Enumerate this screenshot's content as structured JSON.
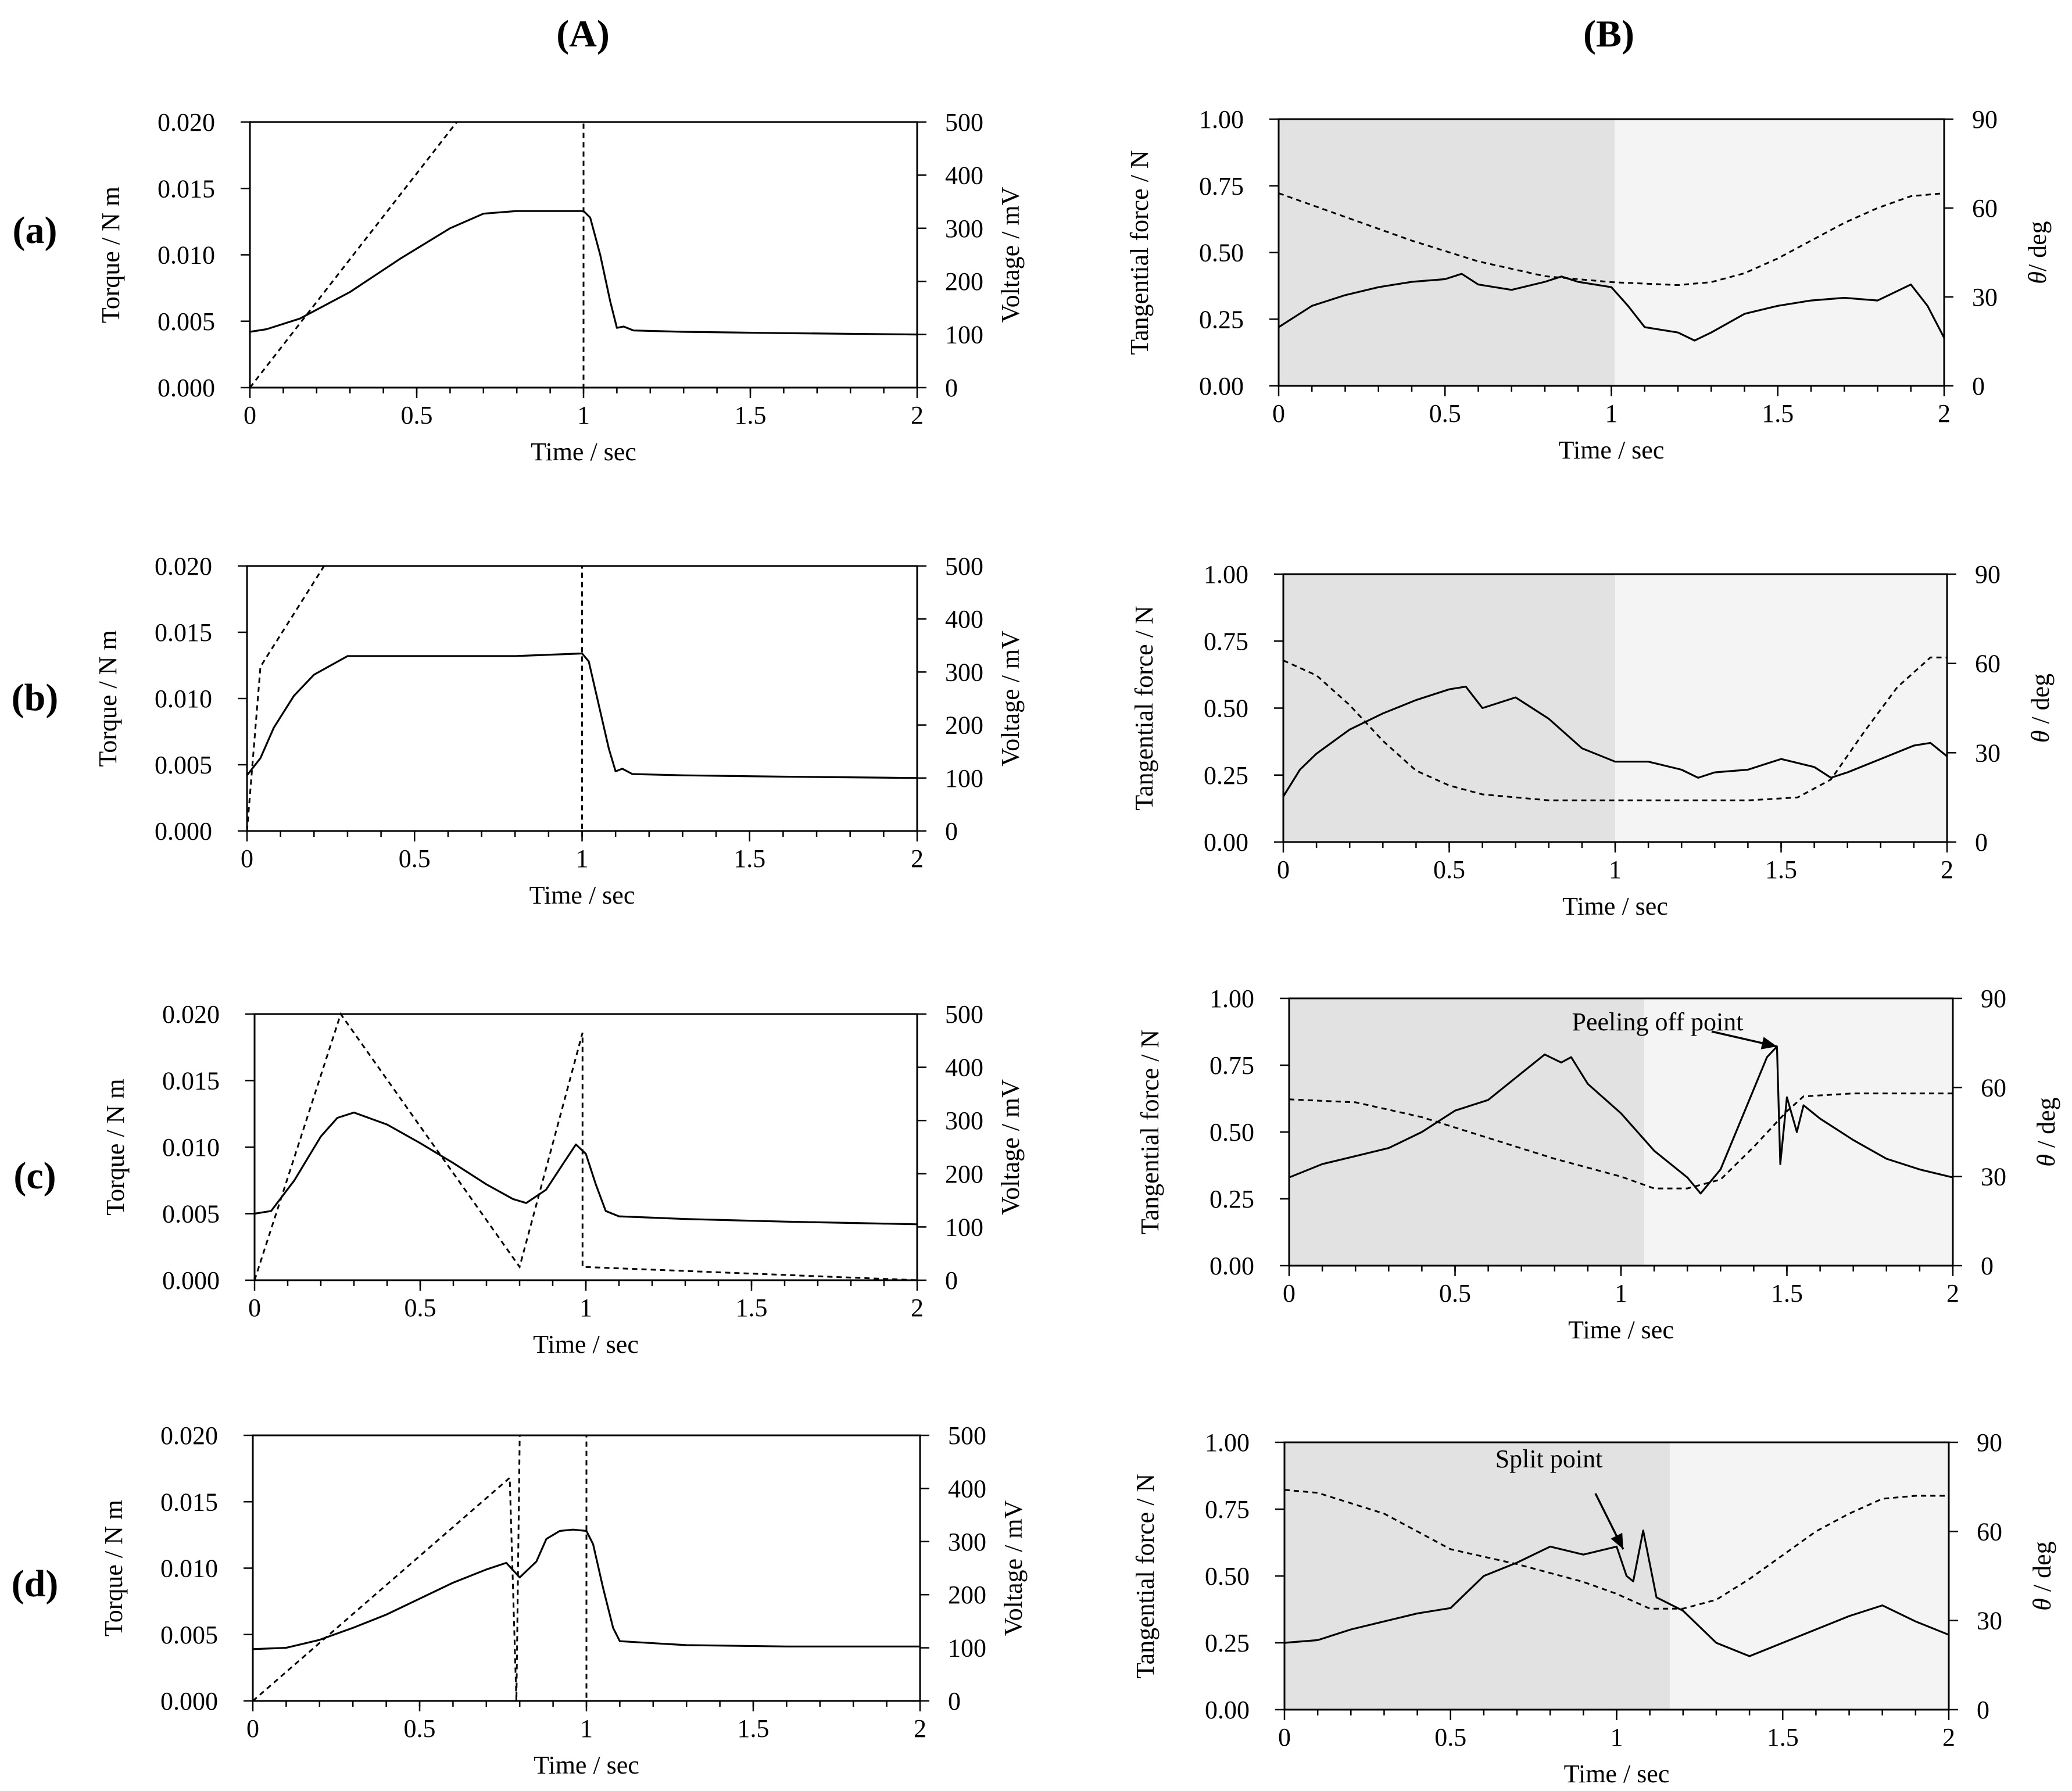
{
  "figure": {
    "col_labels": [
      "(A)",
      "(B)"
    ],
    "row_labels": [
      "(a)",
      "(b)",
      "(c)",
      "(d)"
    ]
  },
  "chart_data": [
    {
      "id": "A-a",
      "type": "line",
      "panel": "(A)",
      "row": "(a)",
      "xlabel": "Time / sec",
      "ylabel": "Torque / N m",
      "y2label": "Voltage / mV",
      "xlim": [
        0,
        2
      ],
      "ylim": [
        0,
        0.02
      ],
      "y2lim": [
        0,
        500
      ],
      "x_ticks": [
        "0",
        "0.5",
        "1",
        "1.5",
        "2"
      ],
      "y_ticks": [
        "0.000",
        "0.005",
        "0.010",
        "0.015",
        "0.020"
      ],
      "y2_ticks": [
        "0",
        "100",
        "200",
        "300",
        "400",
        "500"
      ],
      "series": [
        {
          "axis": "left",
          "style": "solid",
          "x": [
            0,
            0.05,
            0.15,
            0.3,
            0.45,
            0.6,
            0.7,
            0.8,
            0.9,
            1.0,
            1.02,
            1.05,
            1.08,
            1.1,
            1.12,
            1.15,
            1.3,
            1.6,
            2.0
          ],
          "y": [
            0.0042,
            0.0044,
            0.0052,
            0.0072,
            0.0097,
            0.012,
            0.0131,
            0.0133,
            0.0133,
            0.0133,
            0.0128,
            0.01,
            0.0065,
            0.0045,
            0.0046,
            0.0043,
            0.0042,
            0.0041,
            0.004
          ]
        },
        {
          "axis": "right",
          "style": "dashed",
          "x": [
            0,
            0.62,
            1.0,
            1.0
          ],
          "y": [
            0,
            500,
            500,
            0
          ]
        }
      ]
    },
    {
      "id": "A-b",
      "type": "line",
      "panel": "(A)",
      "row": "(b)",
      "xlabel": "Time / sec",
      "ylabel": "Torque / N m",
      "y2label": "Voltage / mV",
      "xlim": [
        0,
        2
      ],
      "ylim": [
        0,
        0.02
      ],
      "y2lim": [
        0,
        500
      ],
      "x_ticks": [
        "0",
        "0.5",
        "1",
        "1.5",
        "2"
      ],
      "y_ticks": [
        "0.000",
        "0.005",
        "0.010",
        "0.015",
        "0.020"
      ],
      "y2_ticks": [
        "0",
        "100",
        "200",
        "300",
        "400",
        "500"
      ],
      "series": [
        {
          "axis": "left",
          "style": "solid",
          "x": [
            0,
            0.04,
            0.08,
            0.14,
            0.2,
            0.3,
            0.5,
            0.8,
            1.0,
            1.02,
            1.05,
            1.08,
            1.1,
            1.12,
            1.15,
            1.3,
            1.6,
            2.0
          ],
          "y": [
            0.0042,
            0.0055,
            0.0078,
            0.0102,
            0.0118,
            0.0132,
            0.0132,
            0.0132,
            0.0134,
            0.0128,
            0.0095,
            0.0062,
            0.0045,
            0.0047,
            0.0043,
            0.0042,
            0.0041,
            0.004
          ]
        },
        {
          "axis": "right",
          "style": "dashed",
          "x": [
            0,
            0.04,
            0.23,
            1.0,
            1.0
          ],
          "y": [
            0,
            310,
            500,
            500,
            0
          ]
        }
      ]
    },
    {
      "id": "A-c",
      "type": "line",
      "panel": "(A)",
      "row": "(c)",
      "xlabel": "Time / sec",
      "ylabel": "Torque / N m",
      "y2label": "Voltage / mV",
      "xlim": [
        0,
        2
      ],
      "ylim": [
        0,
        0.02
      ],
      "y2lim": [
        0,
        500
      ],
      "x_ticks": [
        "0",
        "0.5",
        "1",
        "1.5",
        "2"
      ],
      "y_ticks": [
        "0.000",
        "0.005",
        "0.010",
        "0.015",
        "0.020"
      ],
      "y2_ticks": [
        "0",
        "100",
        "200",
        "300",
        "400",
        "500"
      ],
      "series": [
        {
          "axis": "left",
          "style": "solid",
          "x": [
            0,
            0.05,
            0.12,
            0.2,
            0.25,
            0.3,
            0.4,
            0.5,
            0.6,
            0.7,
            0.78,
            0.82,
            0.88,
            0.93,
            0.97,
            1.0,
            1.03,
            1.06,
            1.1,
            1.3,
            1.6,
            2.0
          ],
          "y": [
            0.005,
            0.0052,
            0.0075,
            0.0108,
            0.0122,
            0.0126,
            0.0117,
            0.0103,
            0.0088,
            0.0072,
            0.0061,
            0.0058,
            0.0068,
            0.0087,
            0.0102,
            0.0095,
            0.0072,
            0.0052,
            0.0048,
            0.0046,
            0.0044,
            0.0042
          ]
        },
        {
          "axis": "right",
          "style": "dashed",
          "x": [
            0,
            0.26,
            0.8,
            0.99,
            0.99,
            2.0
          ],
          "y": [
            0,
            500,
            25,
            465,
            25,
            0
          ]
        }
      ]
    },
    {
      "id": "A-d",
      "type": "line",
      "panel": "(A)",
      "row": "(d)",
      "xlabel": "Time / sec",
      "ylabel": "Torque / N m",
      "y2label": "Voltage / mV",
      "xlim": [
        0,
        2
      ],
      "ylim": [
        0,
        0.02
      ],
      "y2lim": [
        0,
        500
      ],
      "x_ticks": [
        "0",
        "0.5",
        "1",
        "1.5",
        "2"
      ],
      "y_ticks": [
        "0.000",
        "0.005",
        "0.010",
        "0.015",
        "0.020"
      ],
      "y2_ticks": [
        "0",
        "100",
        "200",
        "300",
        "400",
        "500"
      ],
      "series": [
        {
          "axis": "left",
          "style": "solid",
          "x": [
            0,
            0.1,
            0.2,
            0.3,
            0.4,
            0.5,
            0.6,
            0.7,
            0.76,
            0.8,
            0.85,
            0.88,
            0.92,
            0.96,
            1.0,
            1.02,
            1.05,
            1.08,
            1.1,
            1.3,
            1.6,
            2.0
          ],
          "y": [
            0.0039,
            0.004,
            0.0046,
            0.0055,
            0.0065,
            0.0077,
            0.0089,
            0.0099,
            0.0104,
            0.0093,
            0.0105,
            0.0122,
            0.0128,
            0.0129,
            0.0128,
            0.0118,
            0.0085,
            0.0055,
            0.0045,
            0.0042,
            0.0041,
            0.0041
          ]
        },
        {
          "axis": "right",
          "style": "dashed",
          "x": [
            0,
            0.77,
            0.79,
            0.8,
            1.0,
            1.0
          ],
          "y": [
            0,
            420,
            0,
            500,
            500,
            0
          ]
        }
      ]
    },
    {
      "id": "B-a",
      "type": "line",
      "panel": "(B)",
      "row": "(a)",
      "xlabel": "Time / sec",
      "ylabel": "Tangential force / N",
      "y2label": "θ/ deg",
      "xlim": [
        0,
        2
      ],
      "ylim": [
        0,
        1
      ],
      "y2lim": [
        0,
        90
      ],
      "x_ticks": [
        "0",
        "0.5",
        "1",
        "1.5",
        "2"
      ],
      "y_ticks": [
        "0.00",
        "0.25",
        "0.50",
        "0.75",
        "1.00"
      ],
      "y2_ticks": [
        "0",
        "30",
        "60",
        "90"
      ],
      "shade_split_x": 1.01,
      "series": [
        {
          "axis": "left",
          "style": "solid",
          "x": [
            0,
            0.05,
            0.1,
            0.2,
            0.3,
            0.4,
            0.5,
            0.55,
            0.6,
            0.7,
            0.8,
            0.85,
            0.9,
            1.0,
            1.05,
            1.1,
            1.2,
            1.25,
            1.3,
            1.4,
            1.5,
            1.6,
            1.7,
            1.8,
            1.9,
            1.95,
            2.0
          ],
          "y": [
            0.22,
            0.26,
            0.3,
            0.34,
            0.37,
            0.39,
            0.4,
            0.42,
            0.38,
            0.36,
            0.39,
            0.41,
            0.39,
            0.37,
            0.3,
            0.22,
            0.2,
            0.17,
            0.2,
            0.27,
            0.3,
            0.32,
            0.33,
            0.32,
            0.38,
            0.3,
            0.18
          ]
        },
        {
          "axis": "right",
          "style": "dashed",
          "x": [
            0,
            0.2,
            0.4,
            0.6,
            0.8,
            1.0,
            1.2,
            1.3,
            1.4,
            1.5,
            1.6,
            1.7,
            1.8,
            1.9,
            2.0
          ],
          "y": [
            65,
            57,
            49,
            42,
            37,
            35,
            34,
            35,
            38,
            43,
            49,
            55,
            60,
            64,
            65
          ]
        }
      ]
    },
    {
      "id": "B-b",
      "type": "line",
      "panel": "(B)",
      "row": "(b)",
      "xlabel": "Time / sec",
      "ylabel": "Tangential force / N",
      "y2label": "θ / deg",
      "xlim": [
        0,
        2
      ],
      "ylim": [
        0,
        1
      ],
      "y2lim": [
        0,
        90
      ],
      "x_ticks": [
        "0",
        "0.5",
        "1",
        "1.5",
        "2"
      ],
      "y_ticks": [
        "0.00",
        "0.25",
        "0.50",
        "0.75",
        "1.00"
      ],
      "y2_ticks": [
        "0",
        "30",
        "60",
        "90"
      ],
      "shade_split_x": 1.0,
      "series": [
        {
          "axis": "left",
          "style": "solid",
          "x": [
            0,
            0.05,
            0.1,
            0.2,
            0.3,
            0.4,
            0.5,
            0.55,
            0.6,
            0.7,
            0.8,
            0.9,
            1.0,
            1.1,
            1.2,
            1.25,
            1.3,
            1.4,
            1.5,
            1.6,
            1.65,
            1.7,
            1.8,
            1.9,
            1.95,
            2.0
          ],
          "y": [
            0.17,
            0.27,
            0.33,
            0.42,
            0.48,
            0.53,
            0.57,
            0.58,
            0.5,
            0.54,
            0.46,
            0.35,
            0.3,
            0.3,
            0.27,
            0.24,
            0.26,
            0.27,
            0.31,
            0.28,
            0.24,
            0.26,
            0.31,
            0.36,
            0.37,
            0.32
          ]
        },
        {
          "axis": "right",
          "style": "dashed",
          "x": [
            0,
            0.1,
            0.2,
            0.3,
            0.4,
            0.5,
            0.6,
            0.8,
            1.0,
            1.2,
            1.4,
            1.55,
            1.65,
            1.75,
            1.85,
            1.95,
            2.0
          ],
          "y": [
            61,
            56,
            46,
            34,
            24,
            19,
            16,
            14,
            14,
            14,
            14,
            15,
            21,
            37,
            52,
            62,
            62
          ]
        }
      ]
    },
    {
      "id": "B-c",
      "type": "line",
      "panel": "(B)",
      "row": "(c)",
      "xlabel": "Time / sec",
      "ylabel": "Tangential force / N",
      "y2label": "θ / deg",
      "xlim": [
        0,
        2
      ],
      "ylim": [
        0,
        1
      ],
      "y2lim": [
        0,
        90
      ],
      "x_ticks": [
        "0",
        "0.5",
        "1",
        "1.5",
        "2"
      ],
      "y_ticks": [
        "0.00",
        "0.25",
        "0.50",
        "0.75",
        "1.00"
      ],
      "y2_ticks": [
        "0",
        "30",
        "60",
        "90"
      ],
      "shade_split_x": 1.07,
      "annotation": {
        "text": "Peeling off point",
        "x": 1.47,
        "y": 0.82
      },
      "series": [
        {
          "axis": "left",
          "style": "solid",
          "x": [
            0,
            0.1,
            0.2,
            0.3,
            0.4,
            0.5,
            0.6,
            0.7,
            0.77,
            0.82,
            0.85,
            0.9,
            1.0,
            1.1,
            1.2,
            1.24,
            1.3,
            1.38,
            1.44,
            1.47,
            1.48,
            1.5,
            1.53,
            1.55,
            1.6,
            1.7,
            1.8,
            1.9,
            2.0
          ],
          "y": [
            0.33,
            0.38,
            0.41,
            0.44,
            0.5,
            0.58,
            0.62,
            0.72,
            0.79,
            0.76,
            0.78,
            0.68,
            0.57,
            0.43,
            0.33,
            0.27,
            0.36,
            0.6,
            0.78,
            0.82,
            0.38,
            0.63,
            0.5,
            0.6,
            0.55,
            0.47,
            0.4,
            0.36,
            0.33
          ]
        },
        {
          "axis": "right",
          "style": "dashed",
          "x": [
            0,
            0.2,
            0.4,
            0.6,
            0.8,
            1.0,
            1.1,
            1.2,
            1.3,
            1.4,
            1.5,
            1.55,
            1.7,
            2.0
          ],
          "y": [
            56,
            55,
            50,
            43,
            36,
            30,
            26,
            26,
            29,
            40,
            52,
            57,
            58,
            58
          ]
        }
      ]
    },
    {
      "id": "B-d",
      "type": "line",
      "panel": "(B)",
      "row": "(d)",
      "xlabel": "Time / sec",
      "ylabel": "Tangential force / N",
      "y2label": "θ / deg",
      "xlim": [
        0,
        2
      ],
      "ylim": [
        0,
        1
      ],
      "y2lim": [
        0,
        90
      ],
      "x_ticks": [
        "0",
        "0.5",
        "1",
        "1.5",
        "2"
      ],
      "y_ticks": [
        "0.00",
        "0.25",
        "0.50",
        "0.75",
        "1.00"
      ],
      "y2_ticks": [
        "0",
        "30",
        "60",
        "90"
      ],
      "shade_split_x": 1.16,
      "annotation": {
        "text": "Split point",
        "x": 1.02,
        "y": 0.6
      },
      "series": [
        {
          "axis": "left",
          "style": "solid",
          "x": [
            0,
            0.1,
            0.2,
            0.3,
            0.4,
            0.5,
            0.6,
            0.7,
            0.8,
            0.9,
            1.0,
            1.03,
            1.05,
            1.08,
            1.12,
            1.2,
            1.3,
            1.4,
            1.5,
            1.6,
            1.7,
            1.8,
            1.9,
            2.0
          ],
          "y": [
            0.25,
            0.26,
            0.3,
            0.33,
            0.36,
            0.38,
            0.5,
            0.55,
            0.61,
            0.58,
            0.61,
            0.5,
            0.48,
            0.67,
            0.42,
            0.37,
            0.25,
            0.2,
            0.25,
            0.3,
            0.35,
            0.39,
            0.33,
            0.28
          ]
        },
        {
          "axis": "right",
          "style": "dashed",
          "x": [
            0,
            0.1,
            0.3,
            0.4,
            0.5,
            0.7,
            0.9,
            1.0,
            1.1,
            1.2,
            1.3,
            1.4,
            1.5,
            1.6,
            1.7,
            1.8,
            1.9,
            2.0
          ],
          "y": [
            74,
            73,
            66,
            60,
            54,
            49,
            43,
            39,
            34,
            34,
            37,
            44,
            52,
            60,
            66,
            71,
            72,
            72
          ]
        }
      ]
    }
  ]
}
